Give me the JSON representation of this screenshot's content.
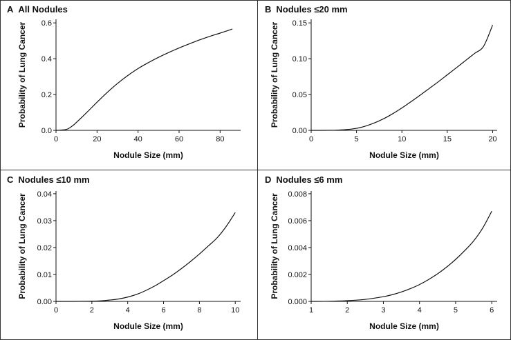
{
  "chart_data": [
    {
      "type": "line",
      "panel_letter": "A",
      "title": "All Nodules",
      "xlabel": "Nodule Size (mm)",
      "ylabel": "Probability of Lung Cancer",
      "xlim": [
        0,
        90
      ],
      "ylim": [
        0,
        0.62
      ],
      "xticks": [
        0,
        20,
        40,
        60,
        80
      ],
      "xtick_labels": [
        "0",
        "20",
        "40",
        "60",
        "80"
      ],
      "yticks": [
        0,
        0.2,
        0.4,
        0.6
      ],
      "ytick_labels": [
        "0.0",
        "0.2",
        "0.4",
        "0.6"
      ],
      "series": [
        {
          "x": [
            0,
            5,
            8,
            10,
            15,
            20,
            25,
            30,
            35,
            40,
            45,
            50,
            55,
            60,
            65,
            70,
            75,
            80,
            86
          ],
          "y": [
            0,
            0.005,
            0.025,
            0.045,
            0.1,
            0.157,
            0.212,
            0.262,
            0.306,
            0.345,
            0.378,
            0.408,
            0.435,
            0.46,
            0.483,
            0.505,
            0.525,
            0.543,
            0.566
          ]
        }
      ]
    },
    {
      "type": "line",
      "panel_letter": "B",
      "title": "Nodules ≤20 mm",
      "xlabel": "Nodule Size (mm)",
      "ylabel": "Probability of Lung Cancer",
      "xlim": [
        0,
        20.5
      ],
      "ylim": [
        0,
        0.155
      ],
      "xticks": [
        0,
        5,
        10,
        15,
        20
      ],
      "xtick_labels": [
        "0",
        "5",
        "10",
        "15",
        "20"
      ],
      "yticks": [
        0,
        0.05,
        0.1,
        0.15
      ],
      "ytick_labels": [
        "0.00",
        "0.05",
        "0.10",
        "0.15"
      ],
      "series": [
        {
          "x": [
            0,
            2,
            3,
            4,
            5,
            6,
            7,
            8,
            9,
            10,
            11,
            12,
            13,
            14,
            15,
            16,
            17,
            18,
            19,
            20
          ],
          "y": [
            0,
            0.0001,
            0.0004,
            0.0012,
            0.0028,
            0.006,
            0.0105,
            0.0163,
            0.0233,
            0.0313,
            0.04,
            0.049,
            0.0583,
            0.0677,
            0.0775,
            0.0873,
            0.0973,
            0.1073,
            0.1173,
            0.147
          ]
        }
      ]
    },
    {
      "type": "line",
      "panel_letter": "C",
      "title": "Nodules ≤10 mm",
      "xlabel": "Nodule Size (mm)",
      "ylabel": "Probability of Lung Cancer",
      "xlim": [
        0,
        10.3
      ],
      "ylim": [
        0,
        0.041
      ],
      "xticks": [
        0,
        2,
        4,
        6,
        8,
        10
      ],
      "xtick_labels": [
        "0",
        "2",
        "4",
        "6",
        "8",
        "10"
      ],
      "yticks": [
        0,
        0.01,
        0.02,
        0.03,
        0.04
      ],
      "ytick_labels": [
        "0.00",
        "0.01",
        "0.02",
        "0.03",
        "0.04"
      ],
      "series": [
        {
          "x": [
            0,
            1,
            2,
            2.5,
            3,
            3.5,
            4,
            4.5,
            5,
            5.5,
            6,
            6.5,
            7,
            7.5,
            8,
            8.5,
            9,
            9.5,
            10
          ],
          "y": [
            0,
            0,
            0.0001,
            0.0002,
            0.0005,
            0.0009,
            0.0016,
            0.0026,
            0.004,
            0.0057,
            0.0077,
            0.0098,
            0.0122,
            0.0148,
            0.0176,
            0.0206,
            0.0237,
            0.0279,
            0.033
          ]
        }
      ]
    },
    {
      "type": "line",
      "panel_letter": "D",
      "title": "Nodules ≤6 mm",
      "xlabel": "Nodule Size (mm)",
      "ylabel": "Probability of Lung Cancer",
      "xlim": [
        1,
        6.15
      ],
      "ylim": [
        0,
        0.0082
      ],
      "xticks": [
        1,
        2,
        3,
        4,
        5,
        6
      ],
      "xtick_labels": [
        "1",
        "2",
        "3",
        "4",
        "5",
        "6"
      ],
      "yticks": [
        0,
        0.002,
        0.004,
        0.006,
        0.008
      ],
      "ytick_labels": [
        "0.000",
        "0.002",
        "0.004",
        "0.006",
        "0.008"
      ],
      "series": [
        {
          "x": [
            1,
            1.5,
            2,
            2.5,
            3,
            3.25,
            3.5,
            3.75,
            4,
            4.25,
            4.5,
            4.75,
            5,
            5.25,
            5.5,
            5.75,
            6
          ],
          "y": [
            0,
            1e-05,
            5e-05,
            0.00015,
            0.00035,
            0.0005,
            0.0007,
            0.00095,
            0.00125,
            0.00162,
            0.00205,
            0.00255,
            0.00312,
            0.00377,
            0.0045,
            0.00545,
            0.0067
          ]
        }
      ]
    }
  ]
}
